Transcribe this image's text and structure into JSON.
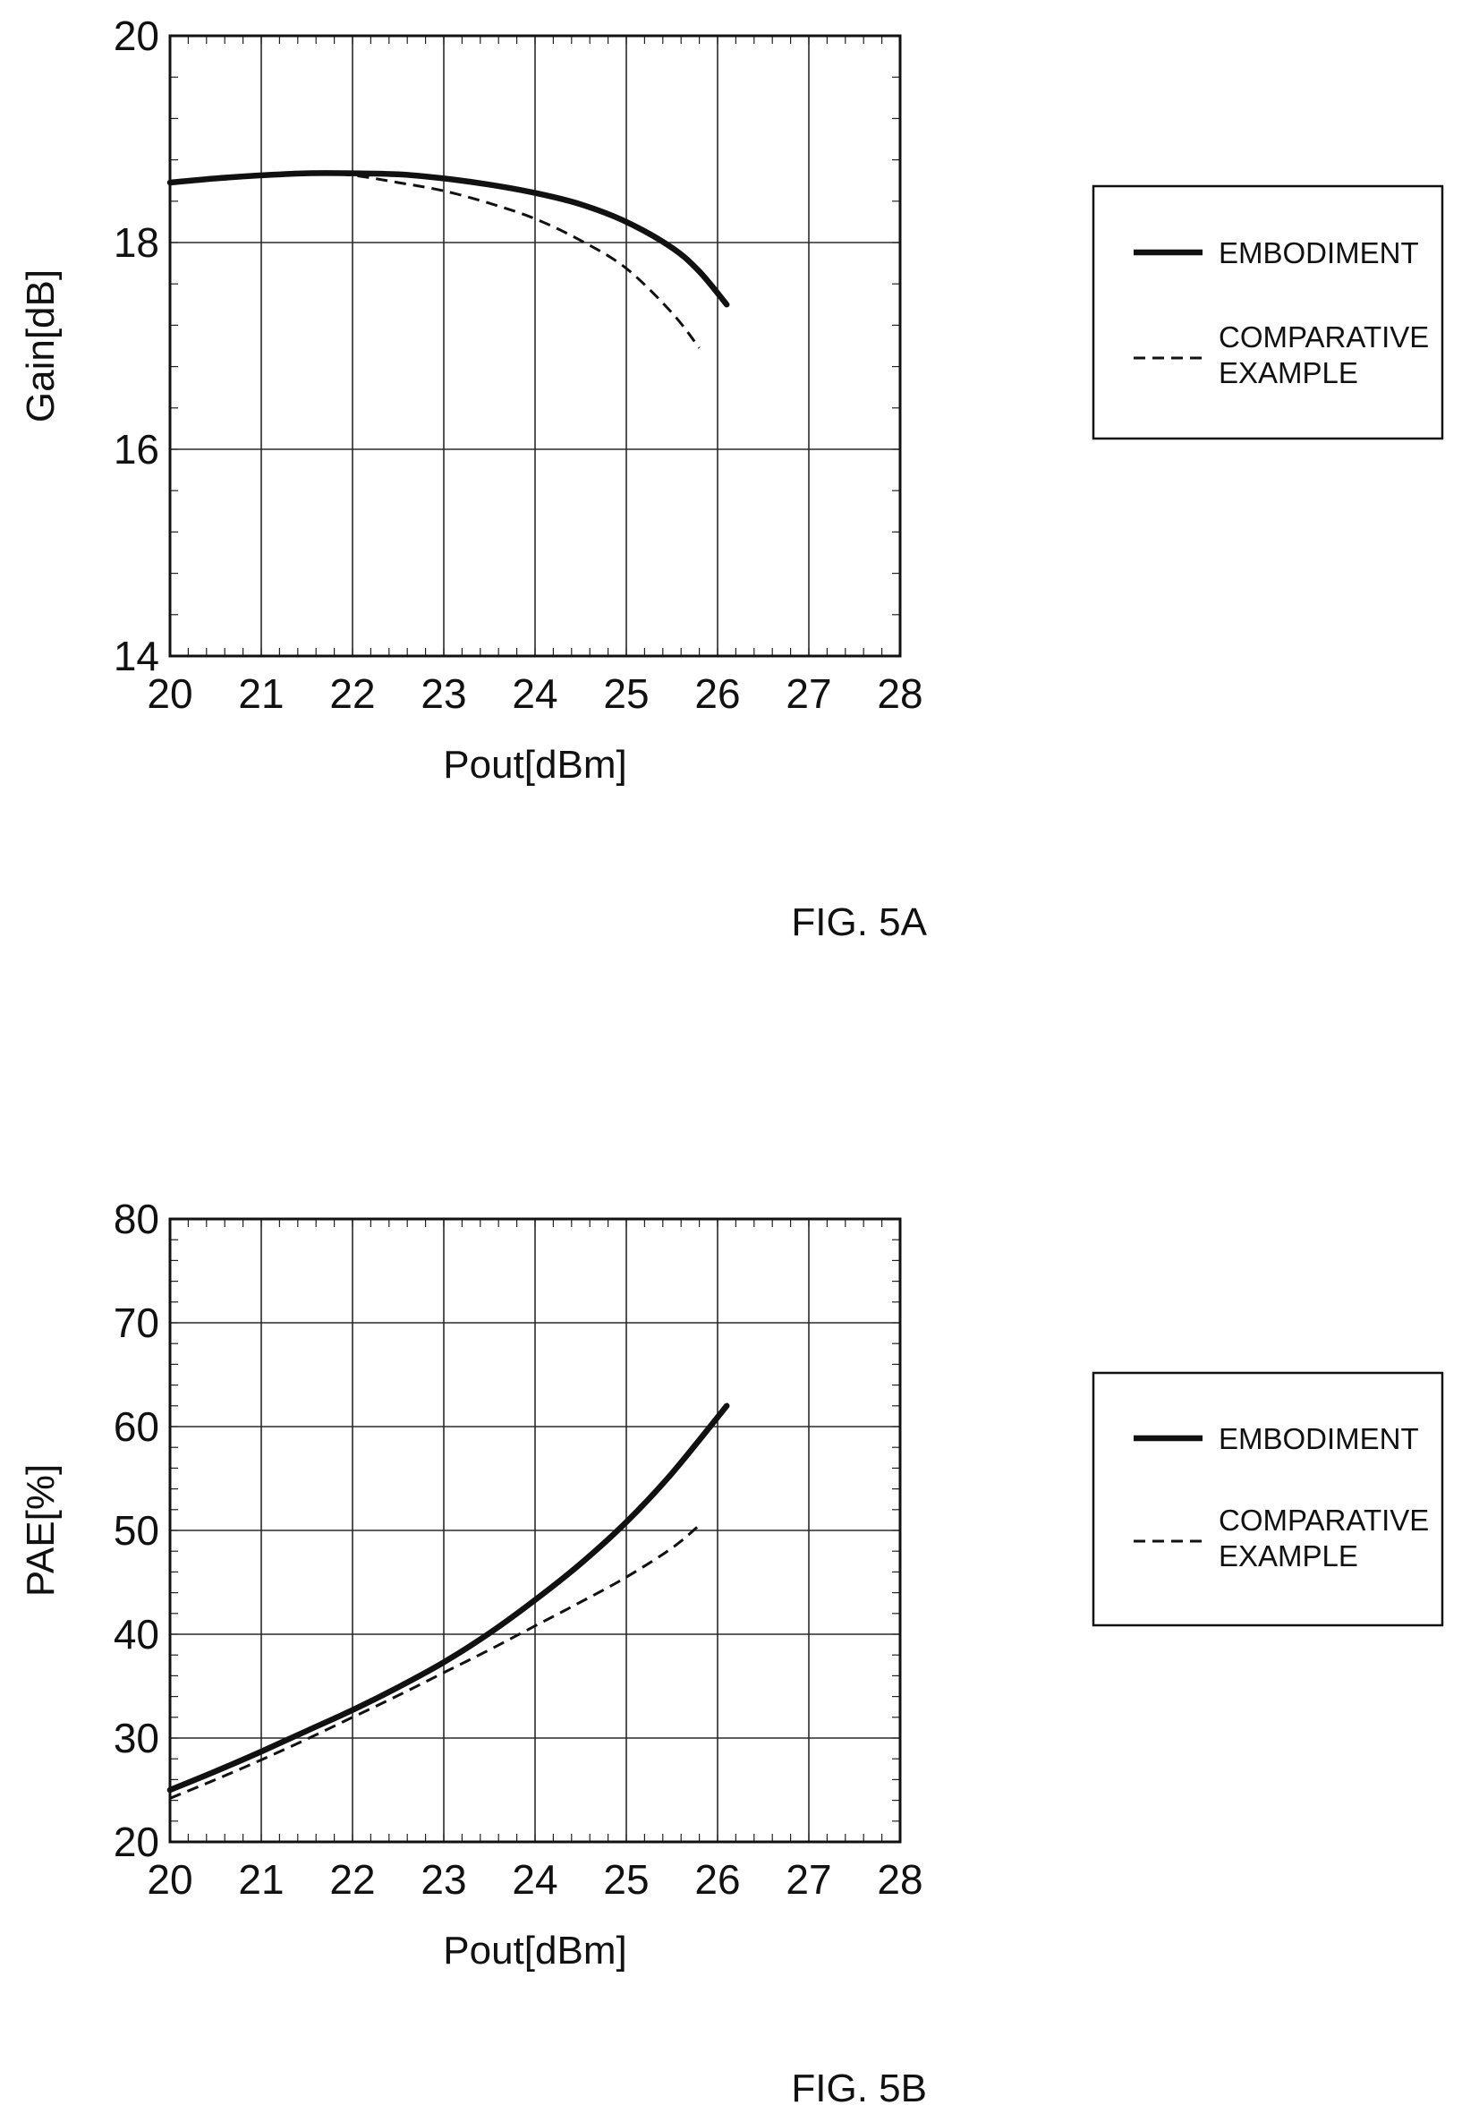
{
  "chart_data": [
    {
      "type": "line",
      "figure_label": "FIG. 5A",
      "xlabel": "Pout[dBm]",
      "ylabel": "Gain[dB]",
      "xlim": [
        20,
        28
      ],
      "ylim": [
        14,
        20
      ],
      "xticks": [
        20,
        21,
        22,
        23,
        24,
        25,
        26,
        27,
        28
      ],
      "yticks": [
        14,
        16,
        18,
        20
      ],
      "grid": true,
      "legend_position": "right",
      "series": [
        {
          "name": "EMBODIMENT",
          "style": "solid-thick",
          "color": "#111111",
          "x": [
            20,
            20.5,
            21,
            21.5,
            22,
            22.5,
            23,
            23.5,
            24,
            24.5,
            25,
            25.5,
            25.8,
            26.1
          ],
          "y": [
            18.58,
            18.62,
            18.65,
            18.67,
            18.67,
            18.66,
            18.62,
            18.56,
            18.48,
            18.37,
            18.2,
            17.95,
            17.72,
            17.4
          ]
        },
        {
          "name": "COMPARATIVE\nEXAMPLE",
          "style": "dashed",
          "color": "#111111",
          "x": [
            20,
            20.5,
            21,
            21.5,
            22,
            22.5,
            23,
            23.5,
            24,
            24.5,
            25,
            25.5,
            25.8
          ],
          "y": [
            18.58,
            18.62,
            18.65,
            18.67,
            18.65,
            18.58,
            18.5,
            18.38,
            18.23,
            18.02,
            17.75,
            17.32,
            16.98
          ]
        }
      ]
    },
    {
      "type": "line",
      "figure_label": "FIG. 5B",
      "xlabel": "Pout[dBm]",
      "ylabel": "PAE[%]",
      "xlim": [
        20,
        28
      ],
      "ylim": [
        20,
        80
      ],
      "xticks": [
        20,
        21,
        22,
        23,
        24,
        25,
        26,
        27,
        28
      ],
      "yticks": [
        20,
        30,
        40,
        50,
        60,
        70,
        80
      ],
      "grid": true,
      "legend_position": "right",
      "series": [
        {
          "name": "EMBODIMENT",
          "style": "solid-thick",
          "color": "#111111",
          "x": [
            20,
            20.5,
            21,
            21.5,
            22,
            22.5,
            23,
            23.5,
            24,
            24.5,
            25,
            25.5,
            26.1
          ],
          "y": [
            25.0,
            26.8,
            28.7,
            30.7,
            32.7,
            34.9,
            37.3,
            40.1,
            43.3,
            46.8,
            50.8,
            55.5,
            62.0
          ]
        },
        {
          "name": "COMPARATIVE\nEXAMPLE",
          "style": "dashed",
          "color": "#111111",
          "x": [
            20,
            20.5,
            21,
            21.5,
            22,
            22.5,
            23,
            23.5,
            24,
            24.5,
            25,
            25.5,
            25.8
          ],
          "y": [
            24.2,
            26.0,
            27.9,
            29.9,
            32.0,
            34.1,
            36.3,
            38.5,
            40.8,
            43.1,
            45.5,
            48.3,
            50.5
          ]
        }
      ]
    }
  ]
}
